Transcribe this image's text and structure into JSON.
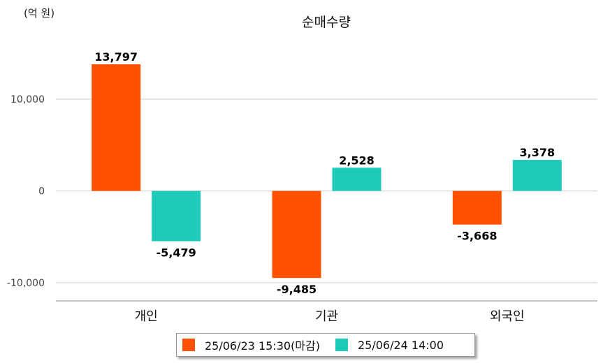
{
  "chart_data": {
    "type": "bar",
    "title": "순매수량",
    "unit_label": "(억 원)",
    "categories": [
      "개인",
      "기관",
      "외국인"
    ],
    "series": [
      {
        "name": "25/06/23 15:30(마감)",
        "color": "#ff5100",
        "values": [
          13797,
          -9485,
          -3668
        ],
        "labels": [
          "13,797",
          "-9,485",
          "-3,668"
        ]
      },
      {
        "name": "25/06/24 14:00",
        "color": "#1ecbbb",
        "values": [
          -5479,
          2528,
          3378
        ],
        "labels": [
          "-5,479",
          "2,528",
          "3,378"
        ]
      }
    ],
    "yticks": [
      {
        "value": 10000,
        "label": "10,000"
      },
      {
        "value": 0,
        "label": "0"
      },
      {
        "value": -10000,
        "label": "-10,000"
      }
    ],
    "ylim": [
      -11980,
      17000
    ],
    "grid": true,
    "legend_position": "bottom"
  }
}
